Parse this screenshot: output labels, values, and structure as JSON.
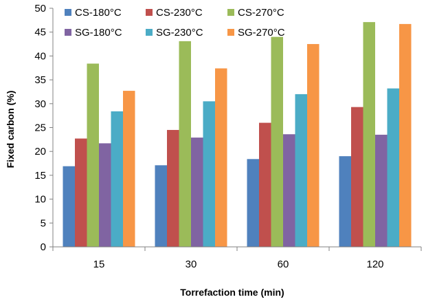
{
  "chart_data": {
    "type": "bar",
    "title": "",
    "xlabel": "Torrefaction time (min)",
    "ylabel": "Fixed carbon (%)",
    "ylim": [
      0,
      50
    ],
    "yticks": [
      0,
      5,
      10,
      15,
      20,
      25,
      30,
      35,
      40,
      45,
      50
    ],
    "grid": false,
    "legend_position": "top",
    "categories": [
      "15",
      "30",
      "60",
      "120"
    ],
    "series": [
      {
        "name": "CS-180°C",
        "color": "#4f81bd",
        "values": [
          16.9,
          17.1,
          18.4,
          19.0
        ]
      },
      {
        "name": "CS-230°C",
        "color": "#c0504d",
        "values": [
          22.7,
          24.5,
          26.0,
          29.3
        ]
      },
      {
        "name": "CS-270°C",
        "color": "#9bbb59",
        "values": [
          38.4,
          43.1,
          44.0,
          47.1
        ]
      },
      {
        "name": "SG-180°C",
        "color": "#8064a2",
        "values": [
          21.7,
          22.9,
          23.6,
          23.5
        ]
      },
      {
        "name": "SG-230°C",
        "color": "#4bacc6",
        "values": [
          28.4,
          30.5,
          32.0,
          33.2
        ]
      },
      {
        "name": "SG-270°C",
        "color": "#f79646",
        "values": [
          32.7,
          37.4,
          42.5,
          46.7
        ]
      }
    ]
  }
}
